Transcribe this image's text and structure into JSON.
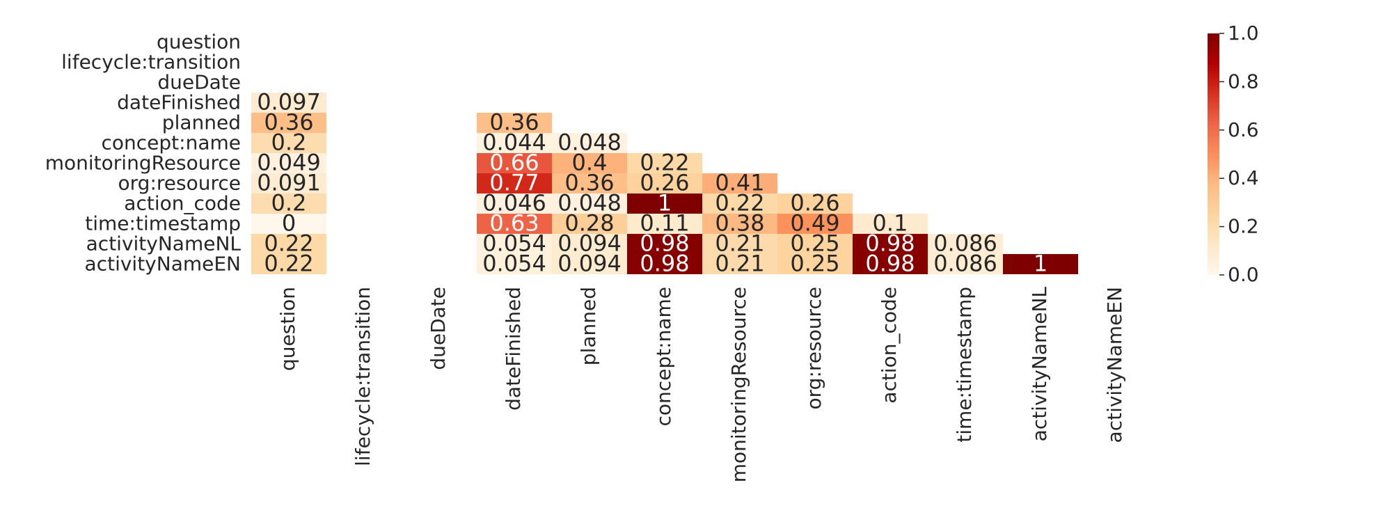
{
  "chart_data": {
    "type": "heatmap",
    "title": "",
    "xlabel": "",
    "ylabel": "",
    "variables": [
      "question",
      "lifecycle:transition",
      "dueDate",
      "dateFinished",
      "planned",
      "concept:name",
      "monitoringResource",
      "org:resource",
      "action_code",
      "time:timestamp",
      "activityNameNL",
      "activityNameEN"
    ],
    "row_labels": [
      "question",
      "lifecycle:transition",
      "dueDate",
      "dateFinished",
      "planned",
      "concept:name",
      "monitoringResource",
      "org:resource",
      "action_code",
      "time:timestamp",
      "activityNameNL",
      "activityNameEN"
    ],
    "col_labels": [
      "question",
      "lifecycle:transition",
      "dueDate",
      "dateFinished",
      "planned",
      "concept:name",
      "monitoringResource",
      "org:resource",
      "action_code",
      "time:timestamp",
      "activityNameNL",
      "activityNameEN"
    ],
    "mask": "upper triangle and diagonal hidden; columns lifecycle:transition and dueDate have no values",
    "cells": [
      {
        "row": "dateFinished",
        "col": "question",
        "value": 0.097,
        "label": "0.097"
      },
      {
        "row": "planned",
        "col": "question",
        "value": 0.36,
        "label": "0.36"
      },
      {
        "row": "planned",
        "col": "dateFinished",
        "value": 0.36,
        "label": "0.36"
      },
      {
        "row": "concept:name",
        "col": "question",
        "value": 0.2,
        "label": "0.2"
      },
      {
        "row": "concept:name",
        "col": "dateFinished",
        "value": 0.044,
        "label": "0.044"
      },
      {
        "row": "concept:name",
        "col": "planned",
        "value": 0.048,
        "label": "0.048"
      },
      {
        "row": "monitoringResource",
        "col": "question",
        "value": 0.049,
        "label": "0.049"
      },
      {
        "row": "monitoringResource",
        "col": "dateFinished",
        "value": 0.66,
        "label": "0.66"
      },
      {
        "row": "monitoringResource",
        "col": "planned",
        "value": 0.4,
        "label": "0.4"
      },
      {
        "row": "monitoringResource",
        "col": "concept:name",
        "value": 0.22,
        "label": "0.22"
      },
      {
        "row": "org:resource",
        "col": "question",
        "value": 0.091,
        "label": "0.091"
      },
      {
        "row": "org:resource",
        "col": "dateFinished",
        "value": 0.77,
        "label": "0.77"
      },
      {
        "row": "org:resource",
        "col": "planned",
        "value": 0.36,
        "label": "0.36"
      },
      {
        "row": "org:resource",
        "col": "concept:name",
        "value": 0.26,
        "label": "0.26"
      },
      {
        "row": "org:resource",
        "col": "monitoringResource",
        "value": 0.41,
        "label": "0.41"
      },
      {
        "row": "action_code",
        "col": "question",
        "value": 0.2,
        "label": "0.2"
      },
      {
        "row": "action_code",
        "col": "dateFinished",
        "value": 0.046,
        "label": "0.046"
      },
      {
        "row": "action_code",
        "col": "planned",
        "value": 0.048,
        "label": "0.048"
      },
      {
        "row": "action_code",
        "col": "concept:name",
        "value": 1.0,
        "label": "1"
      },
      {
        "row": "action_code",
        "col": "monitoringResource",
        "value": 0.22,
        "label": "0.22"
      },
      {
        "row": "action_code",
        "col": "org:resource",
        "value": 0.26,
        "label": "0.26"
      },
      {
        "row": "time:timestamp",
        "col": "question",
        "value": 0.0,
        "label": "0"
      },
      {
        "row": "time:timestamp",
        "col": "dateFinished",
        "value": 0.63,
        "label": "0.63"
      },
      {
        "row": "time:timestamp",
        "col": "planned",
        "value": 0.28,
        "label": "0.28"
      },
      {
        "row": "time:timestamp",
        "col": "concept:name",
        "value": 0.11,
        "label": "0.11"
      },
      {
        "row": "time:timestamp",
        "col": "monitoringResource",
        "value": 0.38,
        "label": "0.38"
      },
      {
        "row": "time:timestamp",
        "col": "org:resource",
        "value": 0.49,
        "label": "0.49"
      },
      {
        "row": "time:timestamp",
        "col": "action_code",
        "value": 0.1,
        "label": "0.1"
      },
      {
        "row": "activityNameNL",
        "col": "question",
        "value": 0.22,
        "label": "0.22"
      },
      {
        "row": "activityNameNL",
        "col": "dateFinished",
        "value": 0.054,
        "label": "0.054"
      },
      {
        "row": "activityNameNL",
        "col": "planned",
        "value": 0.094,
        "label": "0.094"
      },
      {
        "row": "activityNameNL",
        "col": "concept:name",
        "value": 0.98,
        "label": "0.98"
      },
      {
        "row": "activityNameNL",
        "col": "monitoringResource",
        "value": 0.21,
        "label": "0.21"
      },
      {
        "row": "activityNameNL",
        "col": "org:resource",
        "value": 0.25,
        "label": "0.25"
      },
      {
        "row": "activityNameNL",
        "col": "action_code",
        "value": 0.98,
        "label": "0.98"
      },
      {
        "row": "activityNameNL",
        "col": "time:timestamp",
        "value": 0.086,
        "label": "0.086"
      },
      {
        "row": "activityNameEN",
        "col": "question",
        "value": 0.22,
        "label": "0.22"
      },
      {
        "row": "activityNameEN",
        "col": "dateFinished",
        "value": 0.054,
        "label": "0.054"
      },
      {
        "row": "activityNameEN",
        "col": "planned",
        "value": 0.094,
        "label": "0.094"
      },
      {
        "row": "activityNameEN",
        "col": "concept:name",
        "value": 0.98,
        "label": "0.98"
      },
      {
        "row": "activityNameEN",
        "col": "monitoringResource",
        "value": 0.21,
        "label": "0.21"
      },
      {
        "row": "activityNameEN",
        "col": "org:resource",
        "value": 0.25,
        "label": "0.25"
      },
      {
        "row": "activityNameEN",
        "col": "action_code",
        "value": 0.98,
        "label": "0.98"
      },
      {
        "row": "activityNameEN",
        "col": "time:timestamp",
        "value": 0.086,
        "label": "0.086"
      },
      {
        "row": "activityNameEN",
        "col": "activityNameNL",
        "value": 1.0,
        "label": "1"
      }
    ],
    "colorbar": {
      "range": [
        0.0,
        1.0
      ],
      "ticks": [
        "0.0",
        "0.2",
        "0.4",
        "0.6",
        "0.8",
        "1.0"
      ],
      "colormap": "OrRd",
      "stops": [
        "#fff7ec",
        "#fee8c8",
        "#fdd49e",
        "#fdbb84",
        "#fc8d59",
        "#ef6548",
        "#d7301f",
        "#b30000",
        "#7f0000"
      ]
    },
    "grid": false,
    "legend": "colorbar right"
  }
}
